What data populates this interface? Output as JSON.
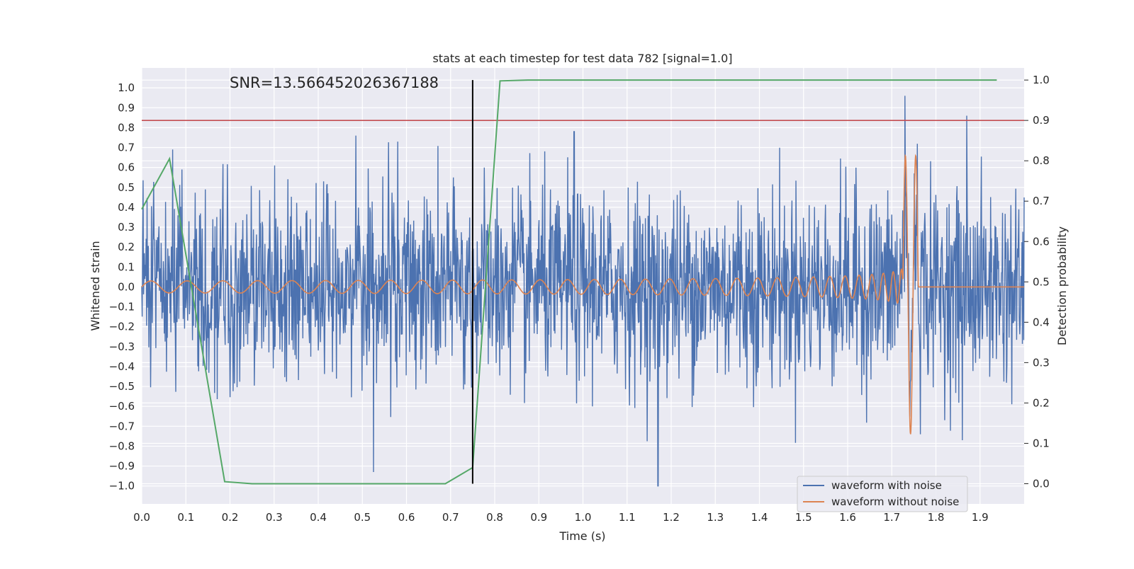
{
  "chart_data": {
    "type": "line",
    "title": "stats at each timestep for test data 782 [signal=1.0]",
    "xlabel": "Time (s)",
    "ylabel": "Whitened strain",
    "ylabel_right": "Detection probability",
    "annotation": "SNR=13.566452026367188",
    "xlim": [
      0.0,
      2.0
    ],
    "ylim": [
      -1.09,
      1.1
    ],
    "ylim_right": [
      -0.05,
      1.03
    ],
    "x_ticks": [
      "0.0",
      "0.1",
      "0.2",
      "0.3",
      "0.4",
      "0.5",
      "0.6",
      "0.7",
      "0.8",
      "0.9",
      "1.0",
      "1.1",
      "1.2",
      "1.3",
      "1.4",
      "1.5",
      "1.6",
      "1.7",
      "1.8",
      "1.9"
    ],
    "y_ticks": [
      "1.0",
      "0.9",
      "0.8",
      "0.7",
      "0.6",
      "0.5",
      "0.4",
      "0.3",
      "0.2",
      "0.1",
      "0.0",
      "−0.1",
      "−0.2",
      "−0.3",
      "−0.4",
      "−0.5",
      "−0.6",
      "−0.7",
      "−0.8",
      "−0.9",
      "−1.0"
    ],
    "y_ticks_right": [
      "1.0",
      "0.9",
      "0.8",
      "0.7",
      "0.6",
      "0.5",
      "0.4",
      "0.3",
      "0.2",
      "0.1",
      "0.0"
    ],
    "grid": true,
    "legend_position": "lower-right",
    "threshold": {
      "axis": "right",
      "value": 0.9,
      "color": "#c44e52"
    },
    "detection_time": {
      "x": 0.75,
      "color": "#000000"
    },
    "series": [
      {
        "name": "waveform with noise",
        "axis": "left",
        "color": "#4c72b0",
        "kind": "noise",
        "x_range": [
          0.0,
          2.0
        ],
        "samples": 2000,
        "amplitude_range": [
          -1.0,
          0.96
        ],
        "peaks": [
          [
            0.07,
            0.69
          ],
          [
            0.485,
            0.76
          ],
          [
            0.525,
            -0.93
          ],
          [
            0.58,
            0.73
          ],
          [
            0.98,
            0.78
          ],
          [
            1.17,
            -1.0
          ],
          [
            1.73,
            0.96
          ],
          [
            1.765,
            -0.74
          ],
          [
            1.86,
            -0.77
          ],
          [
            1.87,
            0.86
          ]
        ]
      },
      {
        "name": "waveform without noise",
        "axis": "left",
        "color": "#dd8452",
        "kind": "chirp",
        "x_range": [
          0.0,
          2.0
        ],
        "merger_time": 1.74,
        "peak_positive": 0.66,
        "peak_negative": -0.74,
        "early_amplitude": 0.03,
        "early_frequency_hz": 12,
        "post_merger_value": 0.0
      },
      {
        "name": "detection probability",
        "axis": "right",
        "color": "#55a868",
        "x": [
          0.0,
          0.063,
          0.188,
          0.25,
          0.688,
          0.75,
          0.812,
          0.875,
          1.938
        ],
        "values": [
          0.68,
          0.805,
          0.005,
          0.0,
          0.0,
          0.04,
          0.998,
          1.0,
          1.0
        ]
      }
    ]
  }
}
